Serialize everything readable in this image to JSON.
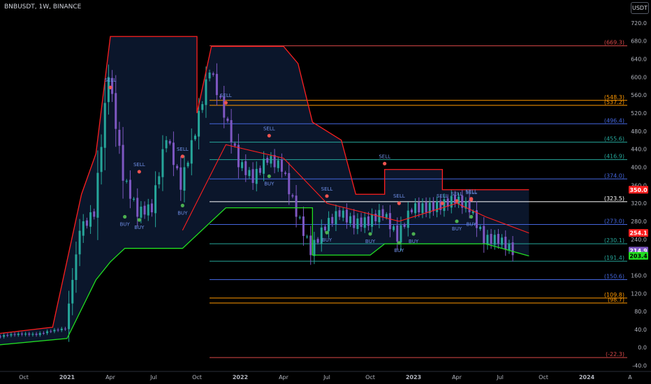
{
  "header": {
    "ticker": "BNBUSDT, 1W, BINANCE",
    "currency_button": "USDT"
  },
  "colors": {
    "up": "#26a69a",
    "down": "#7e57c2",
    "upper_band": "#ff1f1f",
    "lower_band": "#22dd22",
    "fill": "#0d1a33",
    "buy": "#4caf50",
    "sell": "#ef5350",
    "signal_text": "#6f8fe8"
  },
  "chart_data": {
    "type": "candlestick",
    "title": "BNBUSDT, 1W, BINANCE",
    "y_range": [
      -50,
      740
    ],
    "y_ticks": [
      "-40.0",
      "0.0",
      "40.0",
      "80.0",
      "120.0",
      "160.0",
      "200.0",
      "240.0",
      "280.0",
      "320.0",
      "360.0",
      "400.0",
      "440.0",
      "480.0",
      "520.0",
      "560.0",
      "600.0",
      "640.0",
      "680.0",
      "720.0"
    ],
    "x_ticks": [
      "Oct",
      "2021",
      "Apr",
      "Jul",
      "Oct",
      "2022",
      "Apr",
      "Jul",
      "Oct",
      "2023",
      "Apr",
      "Jul",
      "Oct",
      "2024",
      "A"
    ],
    "x_tick_dates": [
      "2020-10",
      "2021-01",
      "2021-04",
      "2021-07",
      "2021-10",
      "2022-01",
      "2022-04",
      "2022-07",
      "2022-10",
      "2023-01",
      "2023-04",
      "2023-07",
      "2023-10",
      "2024-01",
      "2024-04"
    ],
    "price_series": [
      {
        "date": "2020-08",
        "price": 22
      },
      {
        "date": "2020-09",
        "price": 28
      },
      {
        "date": "2020-10",
        "price": 30
      },
      {
        "date": "2020-11",
        "price": 29
      },
      {
        "date": "2020-12",
        "price": 37
      },
      {
        "date": "2021-01",
        "price": 42
      },
      {
        "date": "2021-02",
        "price": 260
      },
      {
        "date": "2021-03",
        "price": 300
      },
      {
        "date": "2021-04",
        "price": 610
      },
      {
        "date": "2021-05",
        "price": 380
      },
      {
        "date": "2021-06",
        "price": 300
      },
      {
        "date": "2021-07",
        "price": 310
      },
      {
        "date": "2021-08",
        "price": 470
      },
      {
        "date": "2021-09",
        "price": 360
      },
      {
        "date": "2021-10",
        "price": 480
      },
      {
        "date": "2021-11",
        "price": 620
      },
      {
        "date": "2021-12",
        "price": 520
      },
      {
        "date": "2022-01",
        "price": 410
      },
      {
        "date": "2022-02",
        "price": 375
      },
      {
        "date": "2022-03",
        "price": 420
      },
      {
        "date": "2022-04",
        "price": 400
      },
      {
        "date": "2022-05",
        "price": 300
      },
      {
        "date": "2022-06",
        "price": 215
      },
      {
        "date": "2022-07",
        "price": 270
      },
      {
        "date": "2022-08",
        "price": 300
      },
      {
        "date": "2022-09",
        "price": 275
      },
      {
        "date": "2022-10",
        "price": 280
      },
      {
        "date": "2022-11",
        "price": 300
      },
      {
        "date": "2022-12",
        "price": 245
      },
      {
        "date": "2023-01",
        "price": 310
      },
      {
        "date": "2023-02",
        "price": 310
      },
      {
        "date": "2023-03",
        "price": 315
      },
      {
        "date": "2023-04",
        "price": 330
      },
      {
        "date": "2023-05",
        "price": 310
      },
      {
        "date": "2023-06",
        "price": 240
      },
      {
        "date": "2023-07",
        "price": 240
      },
      {
        "date": "2023-08",
        "price": 215
      }
    ],
    "upper_band": [
      {
        "date": "2020-08",
        "price": 30
      },
      {
        "date": "2020-12",
        "price": 45
      },
      {
        "date": "2021-02",
        "price": 340
      },
      {
        "date": "2021-03",
        "price": 430
      },
      {
        "date": "2021-04",
        "price": 690
      },
      {
        "date": "2021-10",
        "price": 690
      },
      {
        "date": "2021-10",
        "price": 520
      },
      {
        "date": "2021-11",
        "price": 668
      },
      {
        "date": "2022-04",
        "price": 668
      },
      {
        "date": "2022-05",
        "price": 630
      },
      {
        "date": "2022-06",
        "price": 500
      },
      {
        "date": "2022-08",
        "price": 460
      },
      {
        "date": "2022-09",
        "price": 340
      },
      {
        "date": "2022-11",
        "price": 340
      },
      {
        "date": "2022-11",
        "price": 395
      },
      {
        "date": "2023-03",
        "price": 395
      },
      {
        "date": "2023-03",
        "price": 350
      },
      {
        "date": "2023-09",
        "price": 350
      }
    ],
    "lower_band": [
      {
        "date": "2020-08",
        "price": 5
      },
      {
        "date": "2021-01",
        "price": 20
      },
      {
        "date": "2021-03",
        "price": 150
      },
      {
        "date": "2021-04",
        "price": 190
      },
      {
        "date": "2021-05",
        "price": 220
      },
      {
        "date": "2021-09",
        "price": 220
      },
      {
        "date": "2021-12",
        "price": 310
      },
      {
        "date": "2022-03",
        "price": 310
      },
      {
        "date": "2022-06",
        "price": 310
      },
      {
        "date": "2022-06",
        "price": 205
      },
      {
        "date": "2022-10",
        "price": 205
      },
      {
        "date": "2022-11",
        "price": 230
      },
      {
        "date": "2023-06",
        "price": 230
      },
      {
        "date": "2023-09",
        "price": 203
      }
    ],
    "mid_line": [
      {
        "date": "2021-09",
        "price": 260
      },
      {
        "date": "2021-12",
        "price": 450
      },
      {
        "date": "2022-04",
        "price": 420
      },
      {
        "date": "2022-07",
        "price": 320
      },
      {
        "date": "2022-12",
        "price": 280
      },
      {
        "date": "2023-04",
        "price": 320
      },
      {
        "date": "2023-06",
        "price": 290
      },
      {
        "date": "2023-09",
        "price": 254
      }
    ],
    "levels": [
      {
        "value": 669.3,
        "label": "(669.3)",
        "color": "#d84848"
      },
      {
        "value": 548.3,
        "label": "(548.3)",
        "color": "#ff9800"
      },
      {
        "value": 537.2,
        "label": "(537.2)",
        "color": "#ff9800"
      },
      {
        "value": 496.4,
        "label": "(496.4)",
        "color": "#4466dd"
      },
      {
        "value": 455.6,
        "label": "(455.6)",
        "color": "#26a69a"
      },
      {
        "value": 416.9,
        "label": "(416.9)",
        "color": "#26a69a"
      },
      {
        "value": 374.0,
        "label": "(374.0)",
        "color": "#4466dd"
      },
      {
        "value": 323.5,
        "label": "(323.5)",
        "color": "#ffffff"
      },
      {
        "value": 273.0,
        "label": "(273.0)",
        "color": "#4466dd"
      },
      {
        "value": 230.1,
        "label": "(230.1)",
        "color": "#26a69a"
      },
      {
        "value": 191.4,
        "label": "(191.4)",
        "color": "#26a69a"
      },
      {
        "value": 150.6,
        "label": "(150.6)",
        "color": "#4466dd"
      },
      {
        "value": 109.8,
        "label": "(109.8)",
        "color": "#ff9800"
      },
      {
        "value": 98.7,
        "label": "(98.7)",
        "color": "#ff9800"
      },
      {
        "value": -22.3,
        "label": "(-22.3)",
        "color": "#d84848"
      }
    ],
    "price_badges": [
      {
        "value": 350.0,
        "label": "350.0",
        "color": "#ff1f1f",
        "text_color": "#ffffff"
      },
      {
        "value": 254.1,
        "label": "254.1",
        "color": "#ff1f1f",
        "text_color": "#ffffff"
      },
      {
        "value": 214.9,
        "label": "214.9",
        "sub": "2d 13h",
        "color": "#7e57c2",
        "text_color": "#ffffff"
      },
      {
        "value": 203.4,
        "label": "203.4",
        "color": "#22dd22",
        "text_color": "#000000"
      }
    ],
    "signals": [
      {
        "type": "SELL",
        "date": "2021-04",
        "price": 577
      },
      {
        "type": "SELL",
        "date": "2021-06",
        "price": 390
      },
      {
        "type": "BUY",
        "date": "2021-05",
        "price": 290
      },
      {
        "type": "BUY",
        "date": "2021-06",
        "price": 283
      },
      {
        "type": "SELL",
        "date": "2021-09",
        "price": 424
      },
      {
        "type": "BUY",
        "date": "2021-09",
        "price": 315
      },
      {
        "type": "SELL",
        "date": "2021-12",
        "price": 543
      },
      {
        "type": "SELL",
        "date": "2022-03",
        "price": 470
      },
      {
        "type": "BUY",
        "date": "2022-03",
        "price": 380
      },
      {
        "type": "SELL",
        "date": "2022-07",
        "price": 336
      },
      {
        "type": "BUY",
        "date": "2022-07",
        "price": 255
      },
      {
        "type": "SELL",
        "date": "2022-11",
        "price": 408
      },
      {
        "type": "SELL",
        "date": "2022-12",
        "price": 320
      },
      {
        "type": "BUY",
        "date": "2022-10",
        "price": 252
      },
      {
        "type": "BUY",
        "date": "2022-12",
        "price": 232
      },
      {
        "type": "BUY",
        "date": "2023-01",
        "price": 252
      },
      {
        "type": "SELL",
        "date": "2023-03",
        "price": 320
      },
      {
        "type": "SELL",
        "date": "2023-04",
        "price": 325
      },
      {
        "type": "SELL",
        "date": "2023-05",
        "price": 330
      },
      {
        "type": "SELL",
        "date": "2023-05",
        "price": 328
      },
      {
        "type": "BUY",
        "date": "2023-04",
        "price": 280
      },
      {
        "type": "BUY",
        "date": "2023-05",
        "price": 290
      }
    ]
  }
}
